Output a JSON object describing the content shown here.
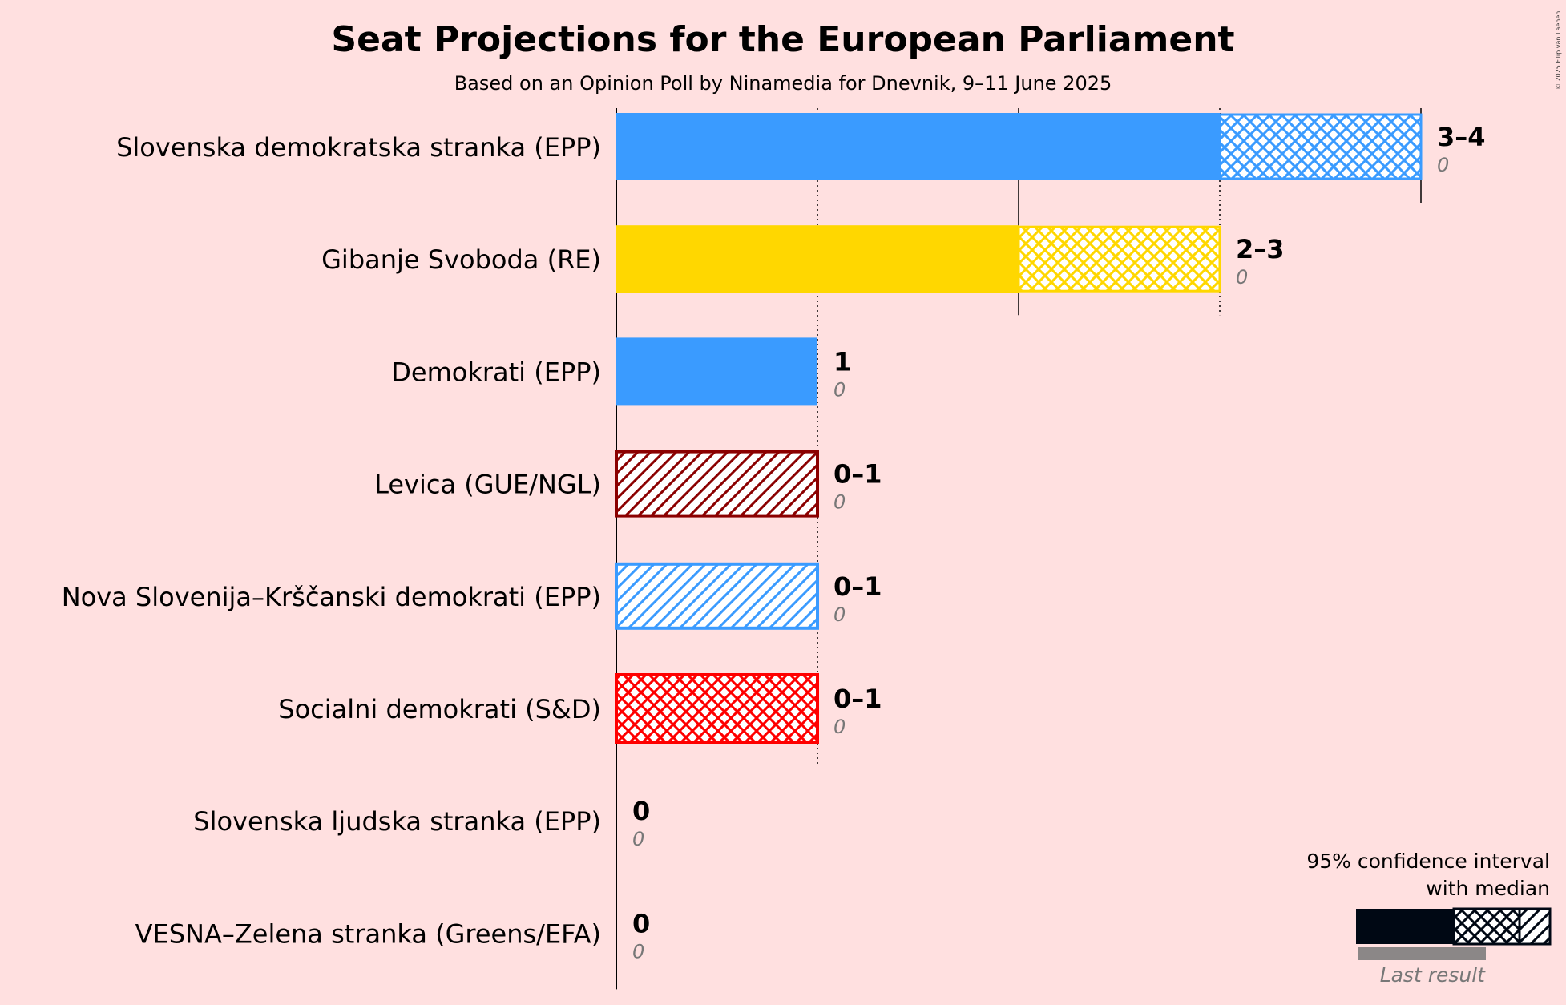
{
  "header": {
    "title": "Seat Projections for the European Parliament",
    "subtitle": "Based on an Opinion Poll by Ninamedia for Dnevnik, 9–11 June 2025"
  },
  "credit": "© 2025 Filip van Laenen",
  "legend": {
    "line1": "95% confidence interval",
    "line2": "with median",
    "last_result": "Last result"
  },
  "chart_data": {
    "type": "bar",
    "title": "Seat Projections for the European Parliament",
    "subtitle": "Based on an Opinion Poll by Ninamedia for Dnevnik, 9–11 June 2025",
    "xlim": [
      0,
      4
    ],
    "gridlines": [
      1,
      2,
      3,
      4
    ],
    "categories": [
      "Slovenska demokratska stranka (EPP)",
      "Gibanje Svoboda (RE)",
      "Demokrati (EPP)",
      "Levica (GUE/NGL)",
      "Nova Slovenija–Krščanski demokrati (EPP)",
      "Socialni demokrati (S&D)",
      "Slovenska ljudska stranka (EPP)",
      "VESNA–Zelena stranka (Greens/EFA)"
    ],
    "parties": [
      {
        "name": "Slovenska demokratska stranka (EPP)",
        "low": 3,
        "median": 3,
        "high": 4,
        "range_label": "3–4",
        "last_result": "0",
        "color": "#3a9bff",
        "border": "#3a9bff"
      },
      {
        "name": "Gibanje Svoboda (RE)",
        "low": 2,
        "median": 2,
        "high": 3,
        "range_label": "2–3",
        "last_result": "0",
        "color": "#ffd700",
        "border": "#ffd700"
      },
      {
        "name": "Demokrati (EPP)",
        "low": 1,
        "median": 1,
        "high": 1,
        "range_label": "1",
        "last_result": "0",
        "color": "#3a9bff",
        "border": "#3a9bff"
      },
      {
        "name": "Levica (GUE/NGL)",
        "low": 0,
        "median": 0,
        "high": 1,
        "range_label": "0–1",
        "last_result": "0",
        "color": "#8b0000",
        "border": "#8b0000"
      },
      {
        "name": "Nova Slovenija–Krščanski demokrati (EPP)",
        "low": 0,
        "median": 0,
        "high": 1,
        "range_label": "0–1",
        "last_result": "0",
        "color": "#3a9bff",
        "border": "#3a9bff"
      },
      {
        "name": "Socialni demokrati (S&D)",
        "low": 0,
        "median": 1,
        "high": 1,
        "range_label": "0–1",
        "last_result": "0",
        "color": "#ff0000",
        "border": "#ff0000"
      },
      {
        "name": "Slovenska ljudska stranka (EPP)",
        "low": 0,
        "median": 0,
        "high": 0,
        "range_label": "0",
        "last_result": "0",
        "color": "#3a9bff",
        "border": "#3a9bff"
      },
      {
        "name": "VESNA–Zelena stranka (Greens/EFA)",
        "low": 0,
        "median": 0,
        "high": 0,
        "range_label": "0",
        "last_result": "0",
        "color": "#3cb371",
        "border": "#3cb371"
      }
    ]
  }
}
